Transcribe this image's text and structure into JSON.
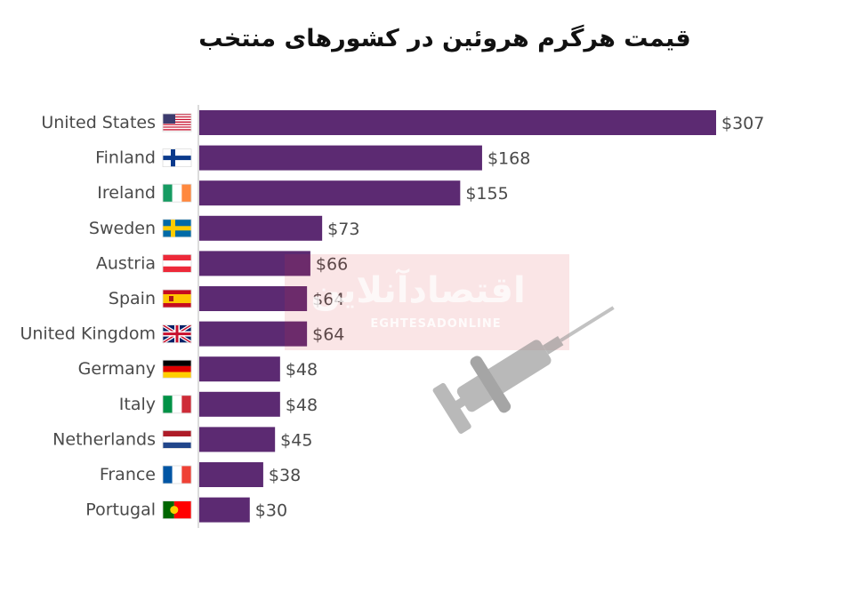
{
  "chart_data": {
    "type": "bar",
    "orientation": "horizontal",
    "title": "قیمت هرگرم هروئین در کشورهای منتخب",
    "categories": [
      "United States",
      "Finland",
      "Ireland",
      "Sweden",
      "Austria",
      "Spain",
      "United Kingdom",
      "Germany",
      "Italy",
      "Netherlands",
      "France",
      "Portugal"
    ],
    "values": [
      307,
      168,
      155,
      73,
      66,
      64,
      64,
      48,
      48,
      45,
      38,
      30
    ],
    "value_labels": [
      "$307",
      "$168",
      "$155",
      "$73",
      "$66",
      "$64",
      "$64",
      "$48",
      "$48",
      "$45",
      "$38",
      "$30"
    ],
    "flags": [
      "us-flag-icon",
      "fi-flag-icon",
      "ie-flag-icon",
      "se-flag-icon",
      "at-flag-icon",
      "es-flag-icon",
      "gb-flag-icon",
      "de-flag-icon",
      "it-flag-icon",
      "nl-flag-icon",
      "fr-flag-icon",
      "pt-flag-icon"
    ],
    "bar_color": "#5c2a72",
    "xlim": [
      0,
      307
    ],
    "grid": false,
    "legend": "none"
  },
  "watermark": {
    "text_fa": "اقتصادآنلاین",
    "text_en": "EGHTESADONLINE",
    "icon": "syringe-icon",
    "color": "#d9333f"
  }
}
